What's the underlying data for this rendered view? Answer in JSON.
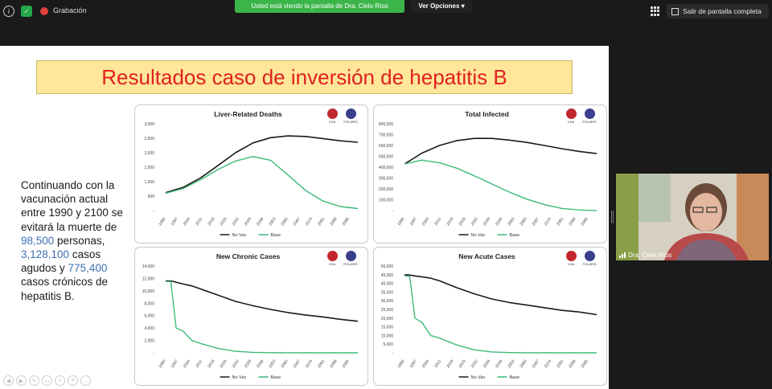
{
  "toolbar": {
    "recording_label": "Grabación",
    "share_banner": "Usted está viendo la pantalla de Dra. Cielo Ríos",
    "view_options": "Ver Opciones ▾",
    "fullscreen_exit": "Salir de pantalla completa"
  },
  "slide": {
    "title": "Resultados caso de inversión de hepatitis B",
    "body_parts": [
      "Continuando con la vacunación actual entre 1990 y 2100 se evitará la muerte de ",
      "98,500",
      " personas, ",
      "3,128,100",
      " casos agudos y ",
      "775,400",
      " casos crónicos de hepatitis B."
    ],
    "logo_labels": [
      "CDA",
      "POLARIS"
    ]
  },
  "video": {
    "participant_name": "Dra. Cielo Ríos"
  },
  "colors": {
    "no_vax": "#1a1a1a",
    "base": "#3cbb78",
    "highlight": "#3c6fb0",
    "title_red": "#e02020",
    "banner_green": "#3bb54a"
  },
  "chart_data": [
    {
      "type": "line",
      "title": "Liver-Related Deaths",
      "ylim": [
        0,
        3000
      ],
      "yticks": [
        "3,000",
        "2,500",
        "2,000",
        "1,500",
        "1,000",
        "500",
        "-"
      ],
      "xticks": [
        "1990",
        "1997",
        "2004",
        "2011",
        "2018",
        "2025",
        "2032",
        "2039",
        "2046",
        "2053",
        "2060",
        "2067",
        "2074",
        "2081",
        "2088",
        "2095"
      ],
      "xlim": [
        1990,
        2100
      ],
      "x": [
        1990,
        2000,
        2010,
        2020,
        2030,
        2040,
        2050,
        2060,
        2070,
        2080,
        2090,
        2100
      ],
      "series": [
        {
          "name": "No Vax",
          "values": [
            620,
            800,
            1130,
            1560,
            2000,
            2340,
            2520,
            2580,
            2560,
            2490,
            2410,
            2360
          ]
        },
        {
          "name": "Base",
          "values": [
            600,
            760,
            1070,
            1420,
            1710,
            1870,
            1740,
            1230,
            700,
            330,
            140,
            70
          ]
        }
      ]
    },
    {
      "type": "line",
      "title": "Total Infected",
      "ylim": [
        0,
        800000
      ],
      "yticks": [
        "800,000",
        "700,000",
        "600,000",
        "500,000",
        "400,000",
        "300,000",
        "200,000",
        "100,000",
        "-"
      ],
      "xticks": [
        "1990",
        "1997",
        "2004",
        "2011",
        "2018",
        "2025",
        "2032",
        "2039",
        "2046",
        "2053",
        "2060",
        "2067",
        "2074",
        "2081",
        "2088",
        "2095"
      ],
      "xlim": [
        1990,
        2100
      ],
      "x": [
        1990,
        2000,
        2010,
        2020,
        2030,
        2040,
        2050,
        2060,
        2070,
        2080,
        2090,
        2100
      ],
      "series": [
        {
          "name": "No Vax",
          "values": [
            430000,
            530000,
            600000,
            645000,
            665000,
            665000,
            650000,
            628000,
            600000,
            570000,
            545000,
            525000
          ]
        },
        {
          "name": "Base",
          "values": [
            430000,
            465000,
            440000,
            390000,
            320000,
            245000,
            170000,
            105000,
            55000,
            20000,
            5000,
            1000
          ]
        }
      ]
    },
    {
      "type": "line",
      "title": "New Chronic Cases",
      "ylim": [
        0,
        14000
      ],
      "yticks": [
        "14,000",
        "12,000",
        "10,000",
        "8,000",
        "6,000",
        "4,000",
        "2,000",
        "-"
      ],
      "xticks": [
        "1990",
        "1997",
        "2004",
        "2011",
        "2018",
        "2025",
        "2032",
        "2039",
        "2046",
        "2053",
        "2060",
        "2067",
        "2074",
        "2081",
        "2088",
        "2095"
      ],
      "xlim": [
        1990,
        2100
      ],
      "x": [
        1990,
        1993,
        1996,
        2000,
        2005,
        2010,
        2020,
        2030,
        2040,
        2050,
        2060,
        2070,
        2080,
        2090,
        2100
      ],
      "series": [
        {
          "name": "No Vax",
          "values": [
            11600,
            11600,
            11400,
            11100,
            10800,
            10300,
            9300,
            8300,
            7600,
            7000,
            6500,
            6100,
            5800,
            5400,
            5100
          ]
        },
        {
          "name": "Base",
          "values": [
            11500,
            11500,
            4000,
            3500,
            2000,
            1500,
            700,
            250,
            80,
            30,
            10,
            0,
            0,
            0,
            0
          ]
        }
      ]
    },
    {
      "type": "line",
      "title": "New Acute Cases",
      "ylim": [
        0,
        50000
      ],
      "yticks": [
        "50,000",
        "45,000",
        "40,000",
        "35,000",
        "30,000",
        "25,000",
        "20,000",
        "15,000",
        "10,000",
        "5,000",
        "-"
      ],
      "xticks": [
        "1990",
        "1997",
        "2004",
        "2011",
        "2018",
        "2025",
        "2032",
        "2039",
        "2046",
        "2053",
        "2060",
        "2067",
        "2074",
        "2081",
        "2088",
        "2095"
      ],
      "xlim": [
        1990,
        2100
      ],
      "x": [
        1990,
        1993,
        1996,
        2000,
        2005,
        2010,
        2020,
        2030,
        2040,
        2050,
        2060,
        2070,
        2080,
        2090,
        2100
      ],
      "series": [
        {
          "name": "No Vax",
          "values": [
            45000,
            44800,
            44300,
            43800,
            43000,
            41500,
            37500,
            34000,
            31000,
            29000,
            27500,
            26000,
            24500,
            23500,
            22000
          ]
        },
        {
          "name": "Base",
          "values": [
            44500,
            44000,
            20000,
            17500,
            10000,
            8500,
            4500,
            1700,
            500,
            150,
            50,
            0,
            0,
            0,
            0
          ]
        }
      ]
    }
  ]
}
